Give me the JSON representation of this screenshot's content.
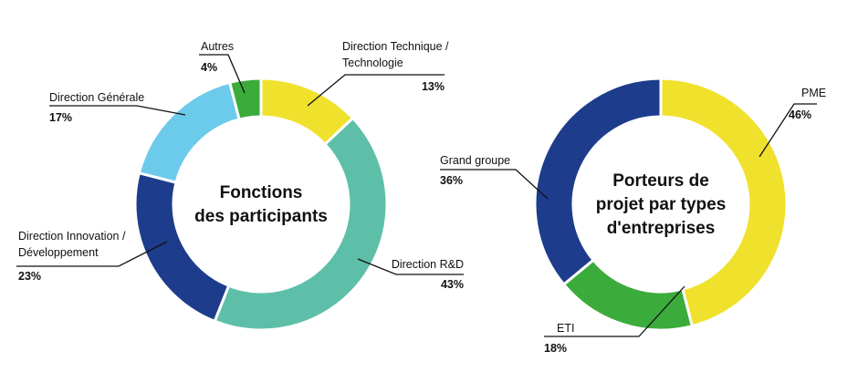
{
  "chart_data": [
    {
      "type": "pie",
      "title": "Fonctions des participants",
      "title_lines": [
        "Fonctions",
        "des participants"
      ],
      "slices": [
        {
          "label_lines": [
            "Direction Technique /",
            "Technologie"
          ],
          "value": 13,
          "value_label": "13%",
          "color": "#f0e12d"
        },
        {
          "label_lines": [
            "Direction R&D"
          ],
          "value": 43,
          "value_label": "43%",
          "color": "#5ebfa8"
        },
        {
          "label_lines": [
            "Direction Innovation /",
            "Développement"
          ],
          "value": 23,
          "value_label": "23%",
          "color": "#1d3c8c"
        },
        {
          "label_lines": [
            "Direction Générale"
          ],
          "value": 17,
          "value_label": "17%",
          "color": "#6ccaea"
        },
        {
          "label_lines": [
            "Autres"
          ],
          "value": 4,
          "value_label": "4%",
          "color": "#3bab3b"
        }
      ]
    },
    {
      "type": "pie",
      "title": "Porteurs de projet par types d'entreprises",
      "title_lines": [
        "Porteurs de",
        "projet par types",
        "d'entreprises"
      ],
      "slices": [
        {
          "label_lines": [
            "PME"
          ],
          "value": 46,
          "value_label": "46%",
          "color": "#f0e12d"
        },
        {
          "label_lines": [
            "ETI"
          ],
          "value": 18,
          "value_label": "18%",
          "color": "#3bab3b"
        },
        {
          "label_lines": [
            "Grand groupe"
          ],
          "value": 36,
          "value_label": "36%",
          "color": "#1d3c8c"
        }
      ]
    }
  ]
}
